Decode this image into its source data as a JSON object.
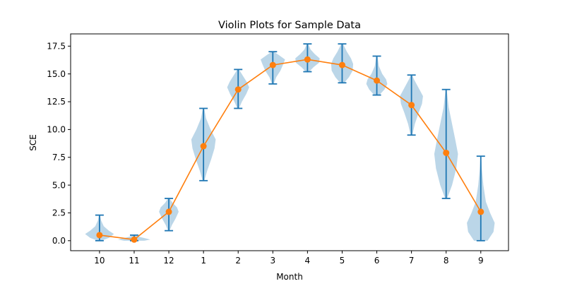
{
  "chart_data": {
    "type": "violin",
    "title": "Violin Plots for Sample Data",
    "xlabel": "Month",
    "ylabel": "SCE",
    "categories": [
      "10",
      "11",
      "12",
      "1",
      "2",
      "3",
      "4",
      "5",
      "6",
      "7",
      "8",
      "9"
    ],
    "ylim": [
      -0.9,
      18.6
    ],
    "yticks": [
      0.0,
      2.5,
      5.0,
      7.5,
      10.0,
      12.5,
      15.0,
      17.5
    ],
    "ytick_labels": [
      "0.0",
      "2.5",
      "5.0",
      "7.5",
      "10.0",
      "12.5",
      "15.0",
      "17.5"
    ],
    "grid": false,
    "legend": "none",
    "violins": [
      {
        "category": "10",
        "min": 0.0,
        "max": 2.3,
        "profile": [
          [
            0.0,
            0.1
          ],
          [
            0.25,
            0.55
          ],
          [
            0.6,
            0.85
          ],
          [
            0.9,
            0.55
          ],
          [
            1.3,
            0.25
          ],
          [
            1.8,
            0.1
          ],
          [
            2.3,
            0.03
          ]
        ]
      },
      {
        "category": "11",
        "min": 0.0,
        "max": 0.5,
        "profile": [
          [
            0.0,
            0.6
          ],
          [
            0.1,
            0.95
          ],
          [
            0.22,
            0.65
          ],
          [
            0.35,
            0.3
          ],
          [
            0.5,
            0.06
          ]
        ]
      },
      {
        "category": "12",
        "min": 0.9,
        "max": 3.8,
        "profile": [
          [
            0.9,
            0.05
          ],
          [
            1.4,
            0.18
          ],
          [
            2.0,
            0.4
          ],
          [
            2.6,
            0.58
          ],
          [
            3.0,
            0.48
          ],
          [
            3.4,
            0.22
          ],
          [
            3.8,
            0.05
          ]
        ]
      },
      {
        "category": "1",
        "min": 5.4,
        "max": 11.9,
        "profile": [
          [
            5.4,
            0.05
          ],
          [
            6.3,
            0.22
          ],
          [
            7.3,
            0.45
          ],
          [
            8.3,
            0.65
          ],
          [
            9.1,
            0.72
          ],
          [
            10.0,
            0.42
          ],
          [
            11.0,
            0.15
          ],
          [
            11.9,
            0.04
          ]
        ]
      },
      {
        "category": "2",
        "min": 11.9,
        "max": 15.4,
        "profile": [
          [
            11.9,
            0.05
          ],
          [
            12.5,
            0.22
          ],
          [
            13.2,
            0.48
          ],
          [
            13.8,
            0.65
          ],
          [
            14.3,
            0.5
          ],
          [
            14.9,
            0.25
          ],
          [
            15.4,
            0.05
          ]
        ]
      },
      {
        "category": "3",
        "min": 14.1,
        "max": 17.0,
        "profile": [
          [
            14.1,
            0.05
          ],
          [
            14.7,
            0.2
          ],
          [
            15.3,
            0.45
          ],
          [
            15.9,
            0.62
          ],
          [
            16.3,
            0.72
          ],
          [
            16.7,
            0.35
          ],
          [
            17.0,
            0.06
          ]
        ]
      },
      {
        "category": "4",
        "min": 15.2,
        "max": 17.7,
        "profile": [
          [
            15.2,
            0.1
          ],
          [
            15.6,
            0.35
          ],
          [
            16.0,
            0.68
          ],
          [
            16.4,
            0.72
          ],
          [
            16.8,
            0.42
          ],
          [
            17.2,
            0.18
          ],
          [
            17.7,
            0.04
          ]
        ]
      },
      {
        "category": "5",
        "min": 14.2,
        "max": 17.7,
        "profile": [
          [
            14.2,
            0.12
          ],
          [
            14.7,
            0.4
          ],
          [
            15.3,
            0.62
          ],
          [
            15.9,
            0.65
          ],
          [
            16.4,
            0.52
          ],
          [
            17.0,
            0.28
          ],
          [
            17.7,
            0.05
          ]
        ]
      },
      {
        "category": "6",
        "min": 13.1,
        "max": 16.6,
        "profile": [
          [
            13.1,
            0.15
          ],
          [
            13.6,
            0.45
          ],
          [
            14.1,
            0.62
          ],
          [
            14.5,
            0.55
          ],
          [
            15.0,
            0.32
          ],
          [
            15.7,
            0.12
          ],
          [
            16.6,
            0.04
          ]
        ]
      },
      {
        "category": "7",
        "min": 9.5,
        "max": 14.9,
        "profile": [
          [
            9.5,
            0.05
          ],
          [
            10.5,
            0.2
          ],
          [
            11.5,
            0.42
          ],
          [
            12.3,
            0.62
          ],
          [
            13.0,
            0.68
          ],
          [
            13.8,
            0.4
          ],
          [
            14.5,
            0.15
          ],
          [
            14.9,
            0.04
          ]
        ]
      },
      {
        "category": "8",
        "min": 3.8,
        "max": 13.6,
        "profile": [
          [
            3.8,
            0.06
          ],
          [
            5.0,
            0.35
          ],
          [
            6.5,
            0.6
          ],
          [
            7.8,
            0.7
          ],
          [
            9.0,
            0.55
          ],
          [
            10.5,
            0.35
          ],
          [
            12.0,
            0.15
          ],
          [
            13.6,
            0.03
          ]
        ]
      },
      {
        "category": "9",
        "min": 0.0,
        "max": 7.6,
        "profile": [
          [
            0.0,
            0.4
          ],
          [
            0.8,
            0.75
          ],
          [
            1.6,
            0.82
          ],
          [
            2.5,
            0.55
          ],
          [
            3.5,
            0.3
          ],
          [
            5.0,
            0.15
          ],
          [
            6.5,
            0.06
          ],
          [
            7.6,
            0.02
          ]
        ]
      }
    ],
    "series": [
      {
        "values": [
          0.5,
          0.1,
          2.6,
          8.5,
          13.6,
          15.8,
          16.3,
          15.8,
          14.4,
          12.2,
          7.9,
          2.6
        ]
      }
    ],
    "colors": {
      "violin_fill": "#1f77b4",
      "violin_line": "#1f77b4",
      "line": "#ff7f0e",
      "axes": "#000000"
    }
  }
}
